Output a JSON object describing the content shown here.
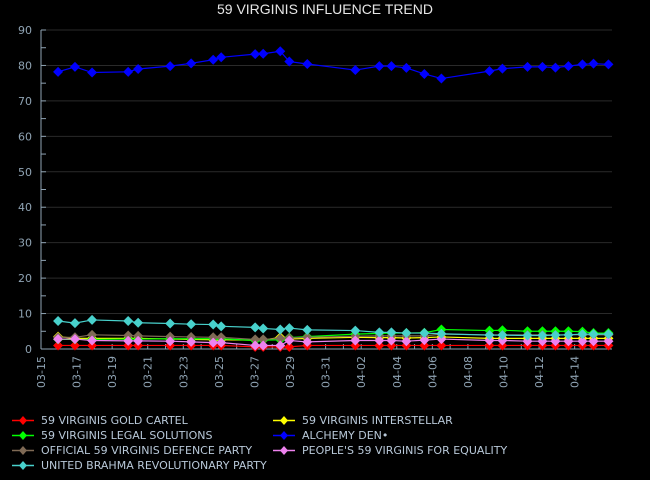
{
  "chart_data": {
    "type": "line",
    "title": "59 VIRGINIS INFLUENCE TREND",
    "xlabel": "",
    "ylabel": "",
    "x_start_date": "03-15",
    "x_unit": "days since 03-15",
    "xlim": [
      0,
      32.1
    ],
    "ylim": [
      0,
      90
    ],
    "yticks": [
      0,
      10,
      20,
      30,
      40,
      50,
      60,
      70,
      80,
      90
    ],
    "xtick_labels": [
      "03-15",
      "03-17",
      "03-19",
      "03-21",
      "03-23",
      "03-25",
      "03-27",
      "03-29",
      "03-31",
      "04-02",
      "04-04",
      "04-06",
      "04-08",
      "04-10",
      "04-12",
      "04-14"
    ],
    "grid": true,
    "legend_position": "bottom",
    "x": [
      0.96,
      1.91,
      2.87,
      4.9,
      5.46,
      7.26,
      8.44,
      9.68,
      10.13,
      12.04,
      12.49,
      13.45,
      13.96,
      14.97,
      17.67,
      19.02,
      19.7,
      20.54,
      21.55,
      22.51,
      25.21,
      25.94,
      27.35,
      28.19,
      28.92,
      29.65,
      30.44,
      31.06,
      31.9
    ],
    "series": [
      {
        "name": "59 VIRGINIS GOLD CARTEL",
        "color": "#ff0000",
        "values": [
          1.0,
          1.0,
          1.0,
          1.0,
          1.0,
          1.0,
          1.0,
          1.0,
          1.0,
          0.6,
          0.6,
          0.6,
          0.6,
          1.0,
          1.0,
          1.0,
          1.0,
          1.0,
          1.0,
          1.0,
          1.0,
          1.0,
          1.0,
          1.0,
          1.0,
          1.0,
          1.0,
          1.0,
          1.0
        ]
      },
      {
        "name": "59 VIRGINIS INTERSTELLAR",
        "color": "#ffff00",
        "values": [
          3.5,
          3.0,
          3.0,
          3.0,
          3.0,
          2.8,
          2.7,
          2.6,
          2.6,
          2.5,
          2.5,
          3.3,
          2.8,
          3.0,
          3.3,
          3.2,
          3.2,
          3.1,
          3.2,
          3.4,
          3.0,
          3.0,
          3.0,
          3.0,
          3.0,
          3.0,
          3.0,
          3.0,
          3.0
        ]
      },
      {
        "name": "59 VIRGINIS LEGAL SOLUTIONS",
        "color": "#00ff00",
        "values": [
          2.7,
          2.7,
          2.7,
          2.8,
          2.8,
          2.9,
          2.9,
          2.9,
          2.9,
          2.4,
          2.5,
          2.6,
          3.2,
          3.5,
          4.2,
          4.4,
          4.5,
          4.5,
          4.6,
          5.5,
          5.2,
          5.3,
          5.0,
          5.0,
          5.0,
          5.0,
          4.9,
          4.5,
          4.5
        ]
      },
      {
        "name": "ALCHEMY DEN•",
        "color": "#0000ff",
        "values": [
          78.2,
          79.6,
          78.0,
          78.2,
          79.0,
          79.8,
          80.6,
          81.6,
          82.3,
          83.2,
          83.3,
          84.0,
          81.1,
          80.4,
          78.7,
          79.8,
          79.8,
          79.3,
          77.6,
          76.3,
          78.4,
          79.1,
          79.6,
          79.6,
          79.4,
          79.8,
          80.3,
          80.5,
          80.3
        ]
      },
      {
        "name": "OFFICIAL 59 VIRGINIS DEFENCE PARTY",
        "color": "#7f6a55",
        "values": [
          3.3,
          3.3,
          4.0,
          3.8,
          3.7,
          3.5,
          3.4,
          3.3,
          3.3,
          2.7,
          2.7,
          3.0,
          3.1,
          3.3,
          3.6,
          3.7,
          3.7,
          3.7,
          3.7,
          4.2,
          4.0,
          4.0,
          4.0,
          4.0,
          4.0,
          4.0,
          4.0,
          4.0,
          4.0
        ]
      },
      {
        "name": "PEOPLE'S 59 VIRGINIS FOR EQUALITY",
        "color": "#ee82ee",
        "values": [
          2.8,
          2.8,
          2.4,
          2.3,
          2.3,
          2.2,
          2.0,
          1.8,
          1.8,
          1.0,
          1.0,
          1.0,
          2.4,
          2.0,
          2.4,
          2.4,
          2.4,
          2.2,
          2.5,
          2.8,
          2.4,
          2.4,
          2.2,
          2.2,
          2.2,
          2.2,
          2.2,
          2.2,
          2.2
        ]
      },
      {
        "name": "UNITED BRAHMA REVOLUTIONARY PARTY",
        "color": "#48d1cc",
        "values": [
          7.9,
          7.3,
          8.2,
          7.9,
          7.4,
          7.2,
          7.0,
          6.9,
          6.4,
          6.1,
          5.8,
          5.5,
          5.9,
          5.4,
          5.2,
          4.7,
          4.7,
          4.5,
          4.5,
          4.3,
          3.9,
          3.9,
          3.8,
          3.8,
          3.9,
          4.0,
          4.2,
          4.2,
          4.2
        ]
      }
    ]
  },
  "legend": {
    "columns": [
      [
        "59 VIRGINIS GOLD CARTEL",
        "59 VIRGINIS LEGAL SOLUTIONS",
        "OFFICIAL 59 VIRGINIS DEFENCE PARTY",
        "UNITED BRAHMA REVOLUTIONARY PARTY"
      ],
      [
        "59 VIRGINIS INTERSTELLAR",
        "ALCHEMY DEN•",
        "PEOPLE'S 59 VIRGINIS FOR EQUALITY"
      ]
    ]
  },
  "colors": {
    "background": "#000000",
    "axis": "#8fa3b3",
    "grid": "#2a2a2a",
    "title": "#e6e6e6",
    "legend_text": "#b8c8d8"
  }
}
